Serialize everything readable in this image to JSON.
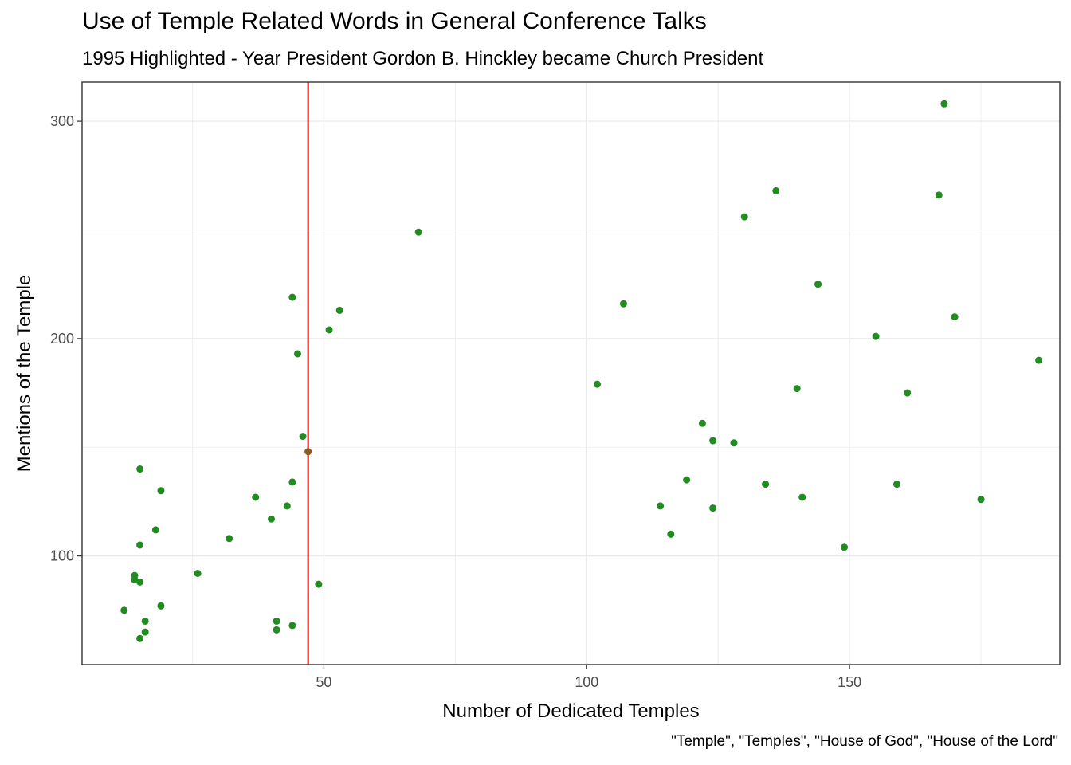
{
  "chart_data": {
    "type": "scatter",
    "title": "Use of Temple Related Words in General Conference Talks",
    "subtitle": "1995 Highlighted - Year President Gordon B. Hinckley became Church President",
    "xlabel": "Number of Dedicated Temples",
    "ylabel": "Mentions of the Temple",
    "caption": "\"Temple\", \"Temples\", \"House of God\", \"House of the Lord\"",
    "xlim": [
      4,
      190
    ],
    "ylim": [
      50,
      318
    ],
    "x_ticks": [
      50,
      100,
      150
    ],
    "x_tick_labels": [
      "50",
      "100",
      "150"
    ],
    "y_ticks": [
      100,
      200,
      300
    ],
    "y_tick_labels": [
      "100",
      "200",
      "300"
    ],
    "grid": true,
    "point_color": "#228B22",
    "highlight_color": "#cc0000",
    "highlight_x": 47,
    "highlight_point": {
      "x": 47,
      "y": 148
    },
    "points": [
      {
        "x": 12,
        "y": 75
      },
      {
        "x": 14,
        "y": 89
      },
      {
        "x": 14,
        "y": 91
      },
      {
        "x": 15,
        "y": 88
      },
      {
        "x": 15,
        "y": 62
      },
      {
        "x": 15,
        "y": 105
      },
      {
        "x": 15,
        "y": 140
      },
      {
        "x": 16,
        "y": 70
      },
      {
        "x": 16,
        "y": 65
      },
      {
        "x": 18,
        "y": 112
      },
      {
        "x": 19,
        "y": 77
      },
      {
        "x": 19,
        "y": 130
      },
      {
        "x": 26,
        "y": 92
      },
      {
        "x": 32,
        "y": 108
      },
      {
        "x": 37,
        "y": 127
      },
      {
        "x": 40,
        "y": 117
      },
      {
        "x": 41,
        "y": 70
      },
      {
        "x": 41,
        "y": 66
      },
      {
        "x": 43,
        "y": 123
      },
      {
        "x": 44,
        "y": 68
      },
      {
        "x": 44,
        "y": 134
      },
      {
        "x": 44,
        "y": 219
      },
      {
        "x": 45,
        "y": 193
      },
      {
        "x": 46,
        "y": 155
      },
      {
        "x": 47,
        "y": 148
      },
      {
        "x": 49,
        "y": 87
      },
      {
        "x": 51,
        "y": 204
      },
      {
        "x": 53,
        "y": 213
      },
      {
        "x": 68,
        "y": 249
      },
      {
        "x": 102,
        "y": 179
      },
      {
        "x": 107,
        "y": 216
      },
      {
        "x": 114,
        "y": 123
      },
      {
        "x": 116,
        "y": 110
      },
      {
        "x": 119,
        "y": 135
      },
      {
        "x": 122,
        "y": 161
      },
      {
        "x": 124,
        "y": 153
      },
      {
        "x": 124,
        "y": 122
      },
      {
        "x": 128,
        "y": 152
      },
      {
        "x": 130,
        "y": 256
      },
      {
        "x": 134,
        "y": 133
      },
      {
        "x": 136,
        "y": 268
      },
      {
        "x": 140,
        "y": 177
      },
      {
        "x": 141,
        "y": 127
      },
      {
        "x": 144,
        "y": 225
      },
      {
        "x": 149,
        "y": 104
      },
      {
        "x": 155,
        "y": 201
      },
      {
        "x": 159,
        "y": 133
      },
      {
        "x": 161,
        "y": 175
      },
      {
        "x": 167,
        "y": 266
      },
      {
        "x": 168,
        "y": 308
      },
      {
        "x": 170,
        "y": 210
      },
      {
        "x": 175,
        "y": 126
      },
      {
        "x": 186,
        "y": 190
      }
    ]
  }
}
